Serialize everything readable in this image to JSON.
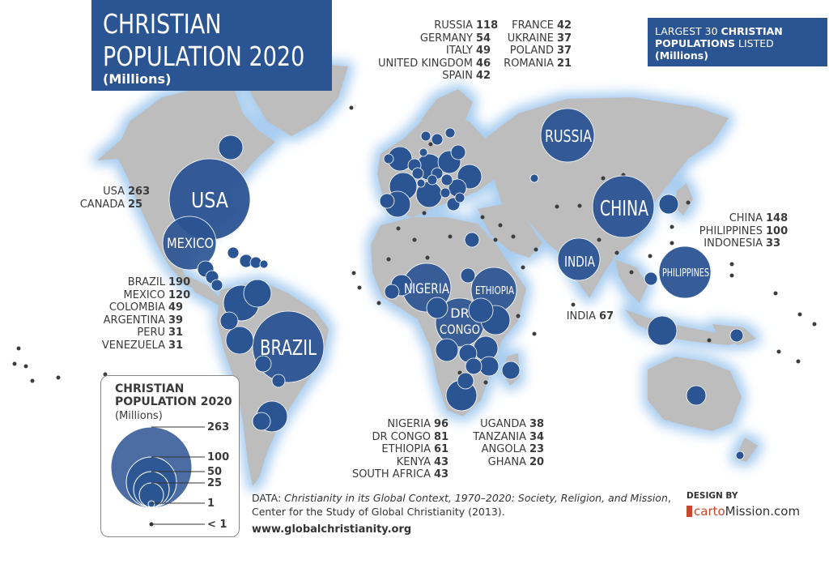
{
  "title": {
    "line1": "CHRISTIAN",
    "line2": "POPULATION 2020",
    "units": "(Millions)"
  },
  "top30_note": {
    "line1_plain": "LARGEST 30 ",
    "line1_bold": "CHRISTIAN",
    "line2_bold": "POPULATIONS",
    "line2_plain": " LISTED",
    "line3": "(Millions)"
  },
  "colors": {
    "ocean": "#ffffff",
    "land": "#bdbdbd",
    "bubble": "#2b5493",
    "glow": "#a8cdf0",
    "title_bg": "#2b5493"
  },
  "groups": {
    "europe_left": [
      {
        "name": "RUSSIA",
        "value": "118"
      },
      {
        "name": "GERMANY",
        "value": "54"
      },
      {
        "name": "ITALY",
        "value": "49"
      },
      {
        "name": "UNITED KINGDOM",
        "value": "46"
      },
      {
        "name": "SPAIN",
        "value": "42"
      }
    ],
    "europe_right": [
      {
        "name": "FRANCE",
        "value": "42"
      },
      {
        "name": "UKRAINE",
        "value": "37"
      },
      {
        "name": "POLAND",
        "value": "37"
      },
      {
        "name": "ROMANIA",
        "value": "21"
      }
    ],
    "north_america": [
      {
        "name": "USA",
        "value": "263"
      },
      {
        "name": "CANADA",
        "value": "25"
      }
    ],
    "latin_america": [
      {
        "name": "BRAZIL",
        "value": "190"
      },
      {
        "name": "MEXICO",
        "value": "120"
      },
      {
        "name": "COLOMBIA",
        "value": "49"
      },
      {
        "name": "ARGENTINA",
        "value": "39"
      },
      {
        "name": "PERU",
        "value": "31"
      },
      {
        "name": "VENEZUELA",
        "value": "31"
      }
    ],
    "east_asia": [
      {
        "name": "CHINA",
        "value": "148"
      },
      {
        "name": "PHILIPPINES",
        "value": "100"
      },
      {
        "name": "INDONESIA",
        "value": "33"
      }
    ],
    "india": [
      {
        "name": "INDIA",
        "value": "67"
      }
    ],
    "africa_left": [
      {
        "name": "NIGERIA",
        "value": "96"
      },
      {
        "name": "DR CONGO",
        "value": "81"
      },
      {
        "name": "ETHIOPIA",
        "value": "61"
      },
      {
        "name": "KENYA",
        "value": "43"
      },
      {
        "name": "SOUTH AFRICA",
        "value": "43"
      }
    ],
    "africa_right": [
      {
        "name": "UGANDA",
        "value": "38"
      },
      {
        "name": "TANZANIA",
        "value": "34"
      },
      {
        "name": "ANGOLA",
        "value": "23"
      },
      {
        "name": "GHANA",
        "value": "20"
      }
    ]
  },
  "map_labels": {
    "usa": "USA",
    "mexico": "MEXICO",
    "brazil": "BRAZIL",
    "russia": "RUSSIA",
    "china": "CHINA",
    "india": "INDIA",
    "philippines": "PHILIPPINES",
    "nigeria": "NIGERIA",
    "ethiopia": "ETHIOPIA",
    "dr_congo_1": "DR",
    "dr_congo_2": "CONGO"
  },
  "legend": {
    "title1": "CHRISTIAN",
    "title2": "POPULATION 2020",
    "units": "(Millions)",
    "levels": [
      "263",
      "100",
      "50",
      "25",
      "1",
      "< 1"
    ]
  },
  "credits": {
    "data_prefix": "DATA: ",
    "data_title": "Christianity in its Global Context, 1970–2020: Society, Religion, and Mission",
    "data_suffix": ", Center for the Study of Global Christianity (2013).",
    "url": "www.globalchristianity.org",
    "design_by": "DESIGN BY",
    "brand_a": "carto",
    "brand_b": "Mission.com"
  }
}
